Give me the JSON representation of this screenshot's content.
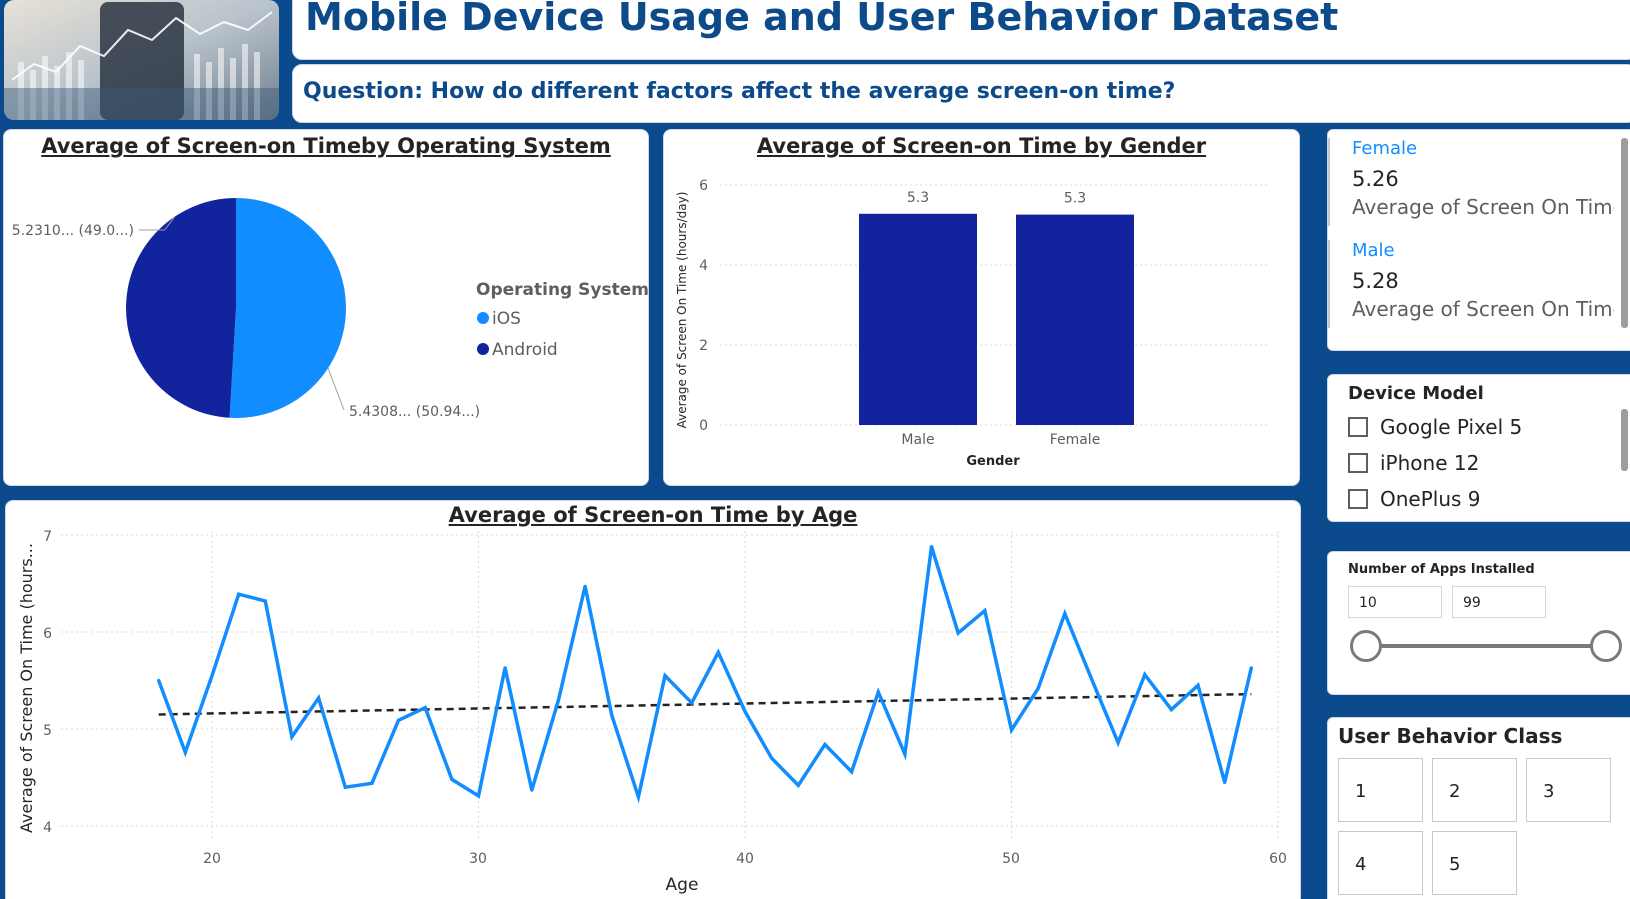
{
  "header": {
    "title": "Mobile Device Usage and User Behavior Dataset",
    "question": "Question: How do different factors affect the average screen-on time?"
  },
  "pie_chart": {
    "title": "Average of Screen-on Timeby Operating System",
    "legend_title": "Operating System",
    "legend": [
      "iOS",
      "Android"
    ],
    "label_ios": "5.4308... (50.94...)",
    "label_android": "5.2310... (49.0...)"
  },
  "bar_chart": {
    "title": "Average of Screen-on Time by Gender",
    "xlabel": "Gender",
    "ylabel": "Average of Screen On Time (hours/day)",
    "yticks": [
      "0",
      "2",
      "4",
      "6"
    ],
    "cat_male": "Male",
    "cat_female": "Female",
    "label_male": "5.3",
    "label_female": "5.3"
  },
  "line_chart": {
    "title": "Average of Screen-on Time by Age",
    "xlabel": "Age",
    "ylabel": "Average of Screen On Time (hours...",
    "xticks": [
      "20",
      "30",
      "40",
      "50",
      "60"
    ],
    "yticks": [
      "4",
      "5",
      "6",
      "7"
    ]
  },
  "chart_data": [
    {
      "type": "pie",
      "title": "Average of Screen-on Timeby Operating System",
      "legend_title": "Operating System",
      "labels": [
        "iOS",
        "Android"
      ],
      "values": [
        5.4308,
        5.231
      ],
      "percentages": [
        50.94,
        49.06
      ],
      "colors": [
        "#118dff",
        "#12239e"
      ]
    },
    {
      "type": "bar",
      "title": "Average of Screen-on Time by Gender",
      "xlabel": "Gender",
      "ylabel": "Average of Screen On Time (hours/day)",
      "categories": [
        "Male",
        "Female"
      ],
      "values": [
        5.28,
        5.26
      ],
      "data_labels": [
        "5.3",
        "5.3"
      ],
      "ylim": [
        0,
        6
      ],
      "color": "#12239e",
      "grid": true
    },
    {
      "type": "line",
      "title": "Average of Screen-on Time by Age",
      "xlabel": "Age",
      "ylabel": "Average of Screen On Time (hours...",
      "x": [
        18,
        19,
        20,
        21,
        22,
        23,
        24,
        25,
        26,
        27,
        28,
        29,
        30,
        31,
        32,
        33,
        34,
        35,
        36,
        37,
        38,
        39,
        40,
        41,
        42,
        43,
        44,
        45,
        46,
        47,
        48,
        49,
        50,
        51,
        52,
        53,
        54,
        55,
        56,
        57,
        58,
        59
      ],
      "y": [
        5.5,
        4.76,
        5.55,
        6.39,
        6.32,
        4.92,
        5.32,
        4.4,
        4.44,
        5.09,
        5.22,
        4.48,
        4.31,
        5.63,
        4.37,
        5.3,
        6.47,
        5.14,
        4.3,
        5.55,
        5.27,
        5.79,
        5.18,
        4.7,
        4.42,
        4.84,
        4.56,
        5.38,
        4.74,
        6.88,
        5.99,
        6.22,
        4.99,
        5.42,
        6.19,
        5.52,
        4.86,
        5.56,
        5.2,
        5.45,
        4.45,
        5.63
      ],
      "trend": [
        5.15,
        5.36
      ],
      "xlim": [
        15,
        60
      ],
      "ylim": [
        4,
        7
      ],
      "color": "#118dff",
      "grid": true
    }
  ],
  "cards": [
    {
      "label": "Female",
      "value": "5.26",
      "desc": "Average of Screen On Time ..."
    },
    {
      "label": "Male",
      "value": "5.28",
      "desc": "Average of Screen On Time ..."
    }
  ],
  "device_slicer": {
    "title": "Device Model",
    "items": [
      "Google Pixel 5",
      "iPhone 12",
      "OnePlus 9"
    ]
  },
  "apps_slicer": {
    "title": "Number of Apps Installed",
    "min": "10",
    "max": "99"
  },
  "class_slicer": {
    "title": "User Behavior Class",
    "items": [
      "1",
      "2",
      "3",
      "4",
      "5"
    ]
  }
}
